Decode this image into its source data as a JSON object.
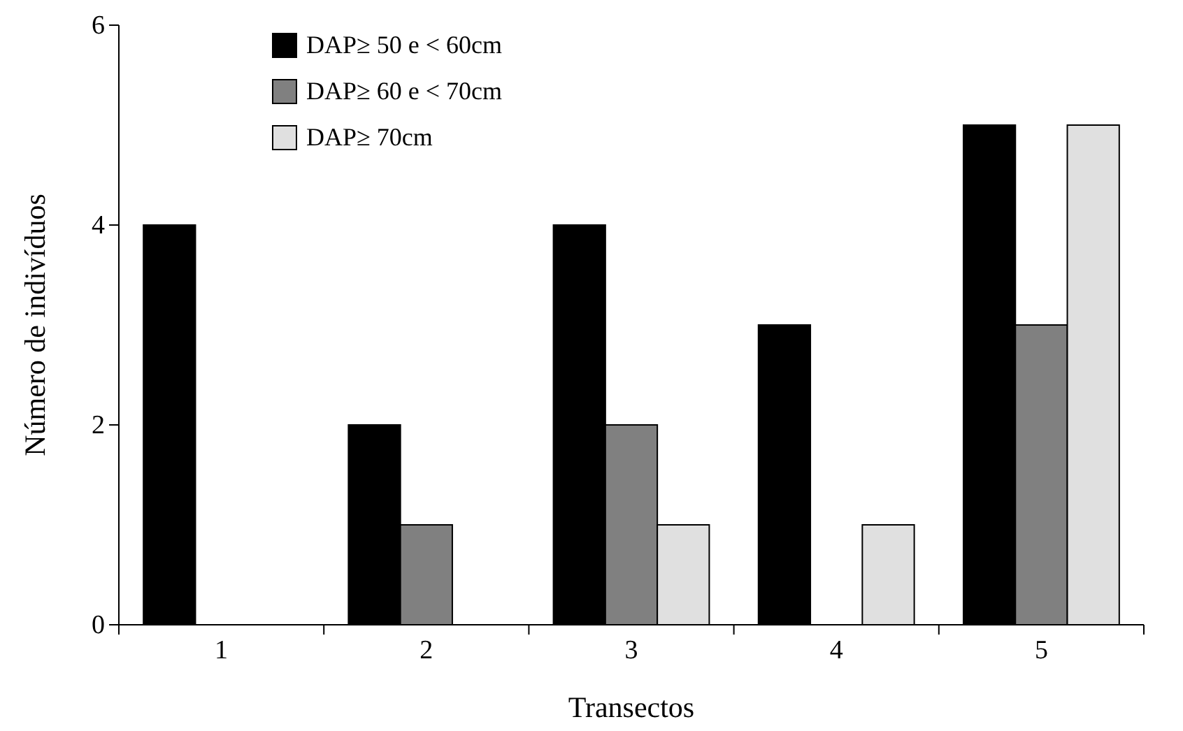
{
  "chart_data": {
    "type": "bar",
    "xlabel": "Transectos",
    "ylabel": "Número de indivíduos",
    "categories": [
      "1",
      "2",
      "3",
      "4",
      "5"
    ],
    "series": [
      {
        "name": "DAP≥ 50 e < 60cm",
        "color": "#000000",
        "values": [
          4,
          2,
          4,
          3,
          5
        ]
      },
      {
        "name": "DAP≥ 60 e < 70cm",
        "color": "#808080",
        "values": [
          0,
          1,
          2,
          0,
          3
        ]
      },
      {
        "name": "DAP≥ 70cm",
        "color": "#e0e0e0",
        "values": [
          0,
          0,
          1,
          1,
          5
        ]
      }
    ],
    "ylim": [
      0,
      6
    ],
    "yticks": [
      0,
      2,
      4,
      6
    ],
    "grid": false,
    "legend": "top left"
  }
}
